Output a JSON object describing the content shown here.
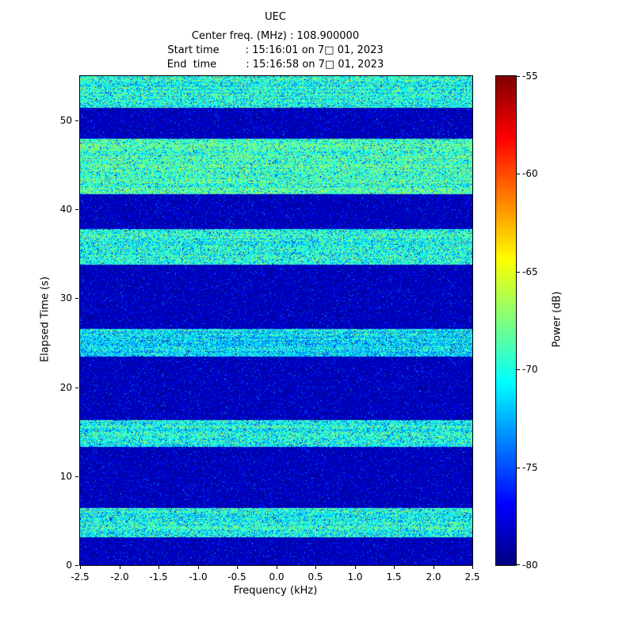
{
  "title": "UEC",
  "header_lines": [
    "Center freq. (MHz) : 108.900000",
    "Start time        : 15:16:01 on 7□ 01, 2023",
    "End  time         : 15:16:58 on 7□ 01, 2023"
  ],
  "chart_data": {
    "type": "heatmap",
    "subtype": "spectrogram-waterfall",
    "title": "UEC",
    "center_freq_mhz": "108.900000",
    "start_time": "15:16:01 on 7□ 01, 2023",
    "end_time": "15:16:58 on 7□ 01, 2023",
    "xlabel": "Frequency (kHz)",
    "ylabel": "Elapsed Time (s)",
    "xlim": [
      -2.5,
      2.5
    ],
    "ylim": [
      0,
      55
    ],
    "xticks": [
      "-2.5",
      "-2.0",
      "-1.5",
      "-1.0",
      "-0.5",
      "0.0",
      "0.5",
      "1.0",
      "1.5",
      "2.0",
      "2.5"
    ],
    "yticks": [
      "0",
      "10",
      "20",
      "30",
      "40",
      "50"
    ],
    "colormap": "jet",
    "colorbar": {
      "label": "Power (dB)",
      "min": -80,
      "max": -55,
      "ticks": [
        "-55",
        "-60",
        "-65",
        "-70",
        "-75",
        "-80"
      ]
    },
    "background_power_db": -79,
    "bands": [
      {
        "t_start": 3.2,
        "t_end": 6.5,
        "power_db": -70
      },
      {
        "t_start": 13.3,
        "t_end": 16.4,
        "power_db": -70
      },
      {
        "t_start": 23.5,
        "t_end": 26.6,
        "power_db": -71
      },
      {
        "t_start": 33.8,
        "t_end": 37.8,
        "power_db": -70
      },
      {
        "t_start": 41.8,
        "t_end": 48.0,
        "power_db": -69
      },
      {
        "t_start": 51.5,
        "t_end": 55.0,
        "power_db": -70
      }
    ]
  }
}
